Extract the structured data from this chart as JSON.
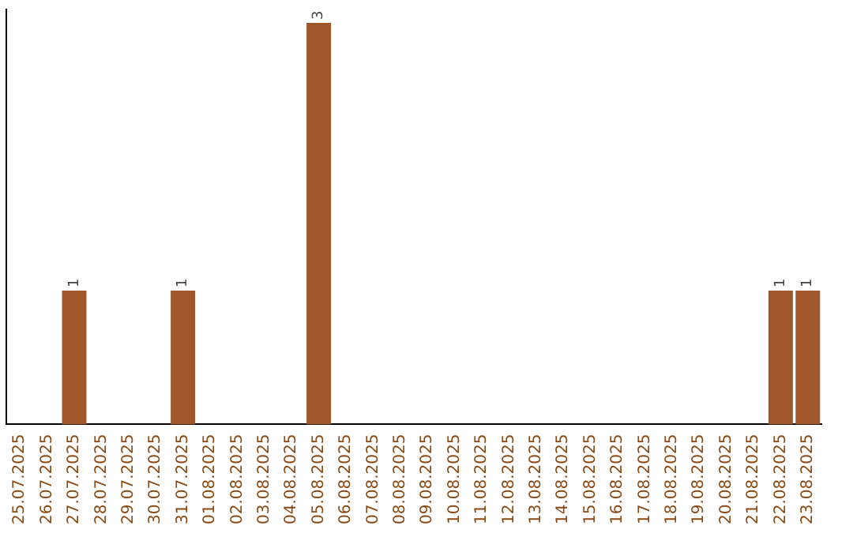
{
  "chart_data": {
    "type": "bar",
    "categories": [
      "25.07.2025",
      "26.07.2025",
      "27.07.2025",
      "28.07.2025",
      "29.07.2025",
      "30.07.2025",
      "31.07.2025",
      "01.08.2025",
      "02.08.2025",
      "03.08.2025",
      "04.08.2025",
      "05.08.2025",
      "06.08.2025",
      "07.08.2025",
      "08.08.2025",
      "09.08.2025",
      "10.08.2025",
      "11.08.2025",
      "12.08.2025",
      "13.08.2025",
      "14.08.2025",
      "15.08.2025",
      "16.08.2025",
      "17.08.2025",
      "18.08.2025",
      "19.08.2025",
      "20.08.2025",
      "21.08.2025",
      "22.08.2025",
      "23.08.2025"
    ],
    "values": [
      0,
      0,
      1,
      0,
      0,
      0,
      1,
      0,
      0,
      0,
      0,
      3,
      0,
      0,
      0,
      0,
      0,
      0,
      0,
      0,
      0,
      0,
      0,
      0,
      0,
      0,
      0,
      0,
      1,
      1
    ],
    "value_labels": [
      null,
      null,
      "1",
      null,
      null,
      null,
      "1",
      null,
      null,
      null,
      null,
      "3",
      null,
      null,
      null,
      null,
      null,
      null,
      null,
      null,
      null,
      null,
      null,
      null,
      null,
      null,
      null,
      null,
      "1",
      "1"
    ],
    "color": "#a0582a",
    "ylim": [
      0,
      3.1
    ],
    "tick_labels": "x",
    "grid": false,
    "legend": false
  }
}
